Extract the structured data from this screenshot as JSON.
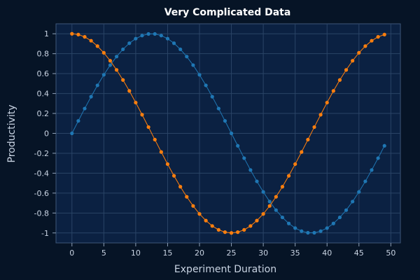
{
  "chart_data": {
    "type": "line",
    "title": "Very Complicated Data",
    "xlabel": "Experiment Duration",
    "ylabel": "Productivity",
    "xlim": [
      -2.5,
      51.5
    ],
    "ylim": [
      -1.1,
      1.1
    ],
    "xticks": [
      0,
      5,
      10,
      15,
      20,
      25,
      30,
      35,
      40,
      45,
      50
    ],
    "yticks": [
      -1,
      -0.8,
      -0.6,
      -0.4,
      -0.2,
      0,
      0.2,
      0.4,
      0.6,
      0.8,
      1
    ],
    "grid": true,
    "x": [
      0,
      1,
      2,
      3,
      4,
      5,
      6,
      7,
      8,
      9,
      10,
      11,
      12,
      13,
      14,
      15,
      16,
      17,
      18,
      19,
      20,
      21,
      22,
      23,
      24,
      25,
      26,
      27,
      28,
      29,
      30,
      31,
      32,
      33,
      34,
      35,
      36,
      37,
      38,
      39,
      40,
      41,
      42,
      43,
      44,
      45,
      46,
      47,
      48,
      49
    ],
    "series": [
      {
        "color": "#1f77b4",
        "values": [
          0,
          0.125,
          0.249,
          0.368,
          0.482,
          0.588,
          0.685,
          0.771,
          0.844,
          0.905,
          0.951,
          0.982,
          0.998,
          0.998,
          0.982,
          0.951,
          0.905,
          0.844,
          0.771,
          0.685,
          0.588,
          0.482,
          0.368,
          0.249,
          0.125,
          0,
          -0.125,
          -0.249,
          -0.368,
          -0.482,
          -0.588,
          -0.685,
          -0.771,
          -0.844,
          -0.905,
          -0.951,
          -0.982,
          -0.998,
          -0.998,
          -0.982,
          -0.951,
          -0.905,
          -0.844,
          -0.771,
          -0.685,
          -0.588,
          -0.482,
          -0.368,
          -0.249,
          -0.125
        ]
      },
      {
        "color": "#ff7f0e",
        "values": [
          1,
          0.992,
          0.969,
          0.93,
          0.876,
          0.809,
          0.729,
          0.637,
          0.536,
          0.426,
          0.309,
          0.187,
          0.063,
          -0.063,
          -0.187,
          -0.309,
          -0.426,
          -0.536,
          -0.637,
          -0.729,
          -0.809,
          -0.876,
          -0.93,
          -0.969,
          -0.992,
          -1,
          -0.992,
          -0.969,
          -0.93,
          -0.876,
          -0.809,
          -0.729,
          -0.637,
          -0.536,
          -0.426,
          -0.309,
          -0.187,
          -0.063,
          0.063,
          0.187,
          0.309,
          0.426,
          0.536,
          0.637,
          0.729,
          0.809,
          0.876,
          0.93,
          0.969,
          0.992
        ]
      }
    ]
  }
}
